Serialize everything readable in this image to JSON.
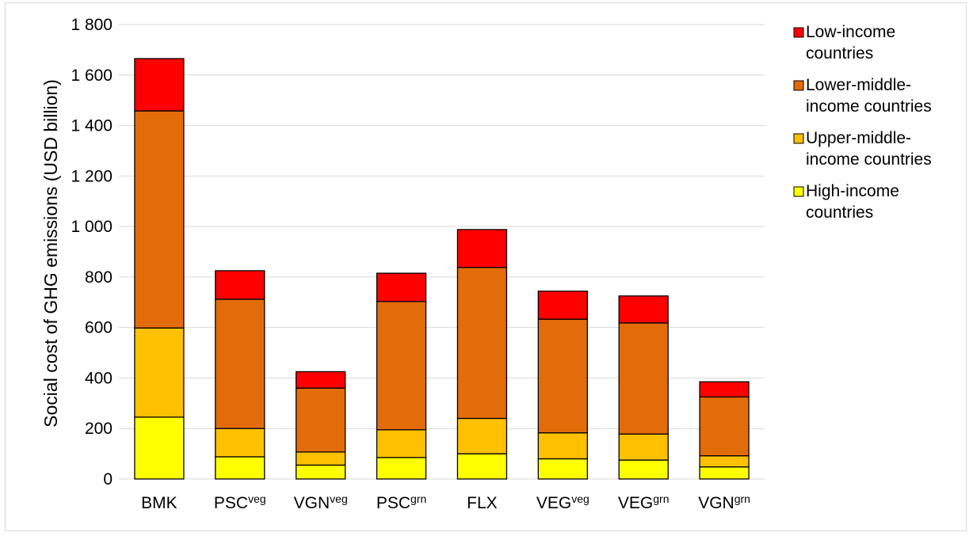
{
  "chart_data": {
    "type": "bar",
    "stacked": true,
    "ylabel": "Social cost of GHG emissions (USD billion)",
    "xlabel": "",
    "ylim": [
      0,
      1800
    ],
    "yticks": [
      "0",
      "200",
      "400",
      "600",
      "800",
      "1 000",
      "1 200",
      "1 400",
      "1 600",
      "1 800"
    ],
    "grid": true,
    "legend_position": "right",
    "categories": [
      {
        "base": "BMK",
        "sup": ""
      },
      {
        "base": "PSC",
        "sup": "veg"
      },
      {
        "base": "VGN",
        "sup": "veg"
      },
      {
        "base": "PSC",
        "sup": "grn"
      },
      {
        "base": "FLX",
        "sup": ""
      },
      {
        "base": "VEG",
        "sup": "veg"
      },
      {
        "base": "VEG",
        "sup": "grn"
      },
      {
        "base": "VGN",
        "sup": "grn"
      }
    ],
    "series": [
      {
        "name": "High-income countries",
        "color": "#ffff00",
        "values": [
          245,
          88,
          55,
          85,
          100,
          80,
          75,
          48
        ]
      },
      {
        "name": "Upper-middle-income countries",
        "color": "#ffc000",
        "values": [
          353,
          112,
          52,
          110,
          140,
          103,
          103,
          44
        ]
      },
      {
        "name": "Lower-middle-income countries",
        "color": "#e36c0a",
        "values": [
          860,
          512,
          253,
          508,
          598,
          450,
          440,
          233
        ]
      },
      {
        "name": "Low-income countries",
        "color": "#ff0000",
        "values": [
          207,
          113,
          65,
          112,
          150,
          111,
          107,
          60
        ]
      }
    ],
    "legend": [
      {
        "lines": [
          "Low-income",
          "countries"
        ],
        "color": "#ff0000"
      },
      {
        "lines": [
          "Lower-middle-",
          "income countries"
        ],
        "color": "#e36c0a"
      },
      {
        "lines": [
          "Upper-middle-",
          "income countries"
        ],
        "color": "#ffc000"
      },
      {
        "lines": [
          "High-income",
          "countries"
        ],
        "color": "#ffff00"
      }
    ]
  }
}
